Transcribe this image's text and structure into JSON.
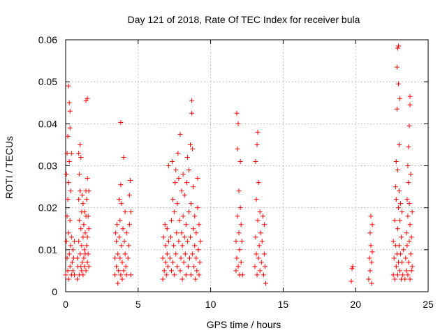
{
  "chart_data": {
    "type": "scatter",
    "title": "Day 121 of 2018, Rate Of TEC Index for receiver bula",
    "xlabel": "GPS time / hours",
    "ylabel": "ROTI / TECUs",
    "xlim": [
      0,
      25
    ],
    "ylim": [
      0,
      0.06
    ],
    "x_ticks": [
      0,
      5,
      10,
      15,
      20,
      25
    ],
    "y_ticks": [
      0,
      0.01,
      0.02,
      0.03,
      0.04,
      0.05,
      0.06
    ],
    "x_tick_labels": [
      "0",
      "5",
      "10",
      "15",
      "20",
      "25"
    ],
    "y_tick_labels": [
      "0",
      "0.01",
      "0.02",
      "0.03",
      "0.04",
      "0.05",
      "0.06"
    ],
    "grid": true,
    "marker": "+",
    "color": "#ff0000",
    "series": [
      {
        "points": [
          [
            0.0,
            0.004
          ],
          [
            0.05,
            0.012
          ],
          [
            0.05,
            0.028
          ],
          [
            0.1,
            0.008
          ],
          [
            0.1,
            0.018
          ],
          [
            0.1,
            0.033
          ],
          [
            0.15,
            0.005
          ],
          [
            0.15,
            0.022
          ],
          [
            0.15,
            0.037
          ],
          [
            0.2,
            0.003
          ],
          [
            0.2,
            0.014
          ],
          [
            0.2,
            0.026
          ],
          [
            0.2,
            0.049
          ],
          [
            0.25,
            0.009
          ],
          [
            0.25,
            0.031
          ],
          [
            0.25,
            0.045
          ],
          [
            0.3,
            0.006
          ],
          [
            0.3,
            0.017
          ],
          [
            0.3,
            0.039
          ],
          [
            0.3,
            0.043
          ],
          [
            0.35,
            0.011
          ],
          [
            0.35,
            0.024
          ],
          [
            0.4,
            0.004
          ],
          [
            0.4,
            0.013
          ],
          [
            0.4,
            0.033
          ],
          [
            0.45,
            0.007
          ],
          [
            0.5,
            0.005
          ],
          [
            0.5,
            0.01
          ],
          [
            0.55,
            0.008
          ],
          [
            0.6,
            0.004
          ],
          [
            0.6,
            0.012
          ],
          [
            0.8,
            0.003
          ],
          [
            0.8,
            0.008
          ],
          [
            0.85,
            0.006
          ],
          [
            0.9,
            0.012
          ],
          [
            0.9,
            0.022
          ],
          [
            0.9,
            0.033
          ],
          [
            0.95,
            0.004
          ],
          [
            0.95,
            0.017
          ],
          [
            0.95,
            0.028
          ],
          [
            1.0,
            0.009
          ],
          [
            1.0,
            0.024
          ],
          [
            1.0,
            0.035
          ],
          [
            1.05,
            0.006
          ],
          [
            1.05,
            0.015
          ],
          [
            1.05,
            0.032
          ],
          [
            1.1,
            0.005
          ],
          [
            1.1,
            0.011
          ],
          [
            1.1,
            0.019
          ],
          [
            1.15,
            0.007
          ],
          [
            1.15,
            0.023
          ],
          [
            1.2,
            0.004
          ],
          [
            1.2,
            0.013
          ],
          [
            1.2,
            0.021
          ],
          [
            1.25,
            0.008
          ],
          [
            1.25,
            0.016
          ],
          [
            1.3,
            0.006
          ],
          [
            1.3,
            0.01
          ],
          [
            1.3,
            0.019
          ],
          [
            1.35,
            0.009
          ],
          [
            1.35,
            0.014
          ],
          [
            1.4,
            0.005
          ],
          [
            1.4,
            0.018
          ],
          [
            1.4,
            0.024
          ],
          [
            1.4,
            0.0455
          ],
          [
            1.45,
            0.011
          ],
          [
            1.45,
            0.022
          ],
          [
            1.5,
            0.007
          ],
          [
            1.5,
            0.013
          ],
          [
            1.5,
            0.027
          ],
          [
            1.5,
            0.046
          ],
          [
            1.55,
            0.009
          ],
          [
            1.55,
            0.018
          ],
          [
            1.6,
            0.006
          ],
          [
            1.6,
            0.015
          ],
          [
            1.6,
            0.024
          ],
          [
            3.4,
            0.004
          ],
          [
            3.4,
            0.008
          ],
          [
            3.45,
            0.014
          ],
          [
            3.5,
            0.006
          ],
          [
            3.5,
            0.012
          ],
          [
            3.55,
            0.016
          ],
          [
            3.6,
            0.002
          ],
          [
            3.6,
            0.009
          ],
          [
            3.65,
            0.005
          ],
          [
            3.7,
            0.013
          ],
          [
            3.7,
            0.022
          ],
          [
            3.75,
            0.008
          ],
          [
            3.75,
            0.017
          ],
          [
            3.8,
            0.004
          ],
          [
            3.8,
            0.0255
          ],
          [
            3.8,
            0.0403
          ],
          [
            3.85,
            0.011
          ],
          [
            3.85,
            0.021
          ],
          [
            3.9,
            0.003
          ],
          [
            3.9,
            0.007
          ],
          [
            3.95,
            0.015
          ],
          [
            4.0,
            0.005
          ],
          [
            4.0,
            0.032
          ],
          [
            4.05,
            0.012
          ],
          [
            4.1,
            0.009
          ],
          [
            4.1,
            0.019
          ],
          [
            4.15,
            0.006
          ],
          [
            4.2,
            0.004
          ],
          [
            4.2,
            0.014
          ],
          [
            4.3,
            0.008
          ],
          [
            4.35,
            0.011
          ],
          [
            4.4,
            0.016
          ],
          [
            4.4,
            0.023
          ],
          [
            4.45,
            0.0265
          ],
          [
            4.5,
            0.004
          ],
          [
            4.5,
            0.019
          ],
          [
            6.7,
            0.003
          ],
          [
            6.7,
            0.008
          ],
          [
            6.75,
            0.013
          ],
          [
            6.8,
            0.005
          ],
          [
            6.85,
            0.016
          ],
          [
            6.9,
            0.007
          ],
          [
            6.9,
            0.011
          ],
          [
            6.95,
            0.004
          ],
          [
            7.0,
            0.009
          ],
          [
            7.0,
            0.015
          ],
          [
            7.05,
            0.006
          ],
          [
            7.1,
            0.012
          ],
          [
            7.1,
            0.03
          ],
          [
            7.2,
            0.008
          ],
          [
            7.25,
            0.013
          ],
          [
            7.3,
            0.005
          ],
          [
            7.3,
            0.017
          ],
          [
            7.35,
            0.031
          ],
          [
            7.4,
            0.007
          ],
          [
            7.4,
            0.022
          ],
          [
            7.45,
            0.011
          ],
          [
            7.5,
            0.004
          ],
          [
            7.5,
            0.019
          ],
          [
            7.55,
            0.026
          ],
          [
            7.6,
            0.009
          ],
          [
            7.6,
            0.029
          ],
          [
            7.65,
            0.014
          ],
          [
            7.7,
            0.006
          ],
          [
            7.7,
            0.021
          ],
          [
            7.75,
            0.033
          ],
          [
            7.8,
            0.012
          ],
          [
            7.8,
            0.027
          ],
          [
            7.85,
            0.017
          ],
          [
            7.9,
            0.005
          ],
          [
            7.9,
            0.0375
          ],
          [
            7.95,
            0.008
          ],
          [
            8.0,
            0.014
          ],
          [
            8.0,
            0.024
          ],
          [
            8.05,
            0.003
          ],
          [
            8.05,
            0.011
          ],
          [
            8.1,
            0.018
          ],
          [
            8.1,
            0.028
          ],
          [
            8.15,
            0.007
          ],
          [
            8.2,
            0.013
          ],
          [
            8.2,
            0.023
          ],
          [
            8.25,
            0.009
          ],
          [
            8.3,
            0.004
          ],
          [
            8.3,
            0.016
          ],
          [
            8.35,
            0.026
          ],
          [
            8.4,
            0.012
          ],
          [
            8.4,
            0.032
          ],
          [
            8.45,
            0.006
          ],
          [
            8.5,
            0.019
          ],
          [
            8.5,
            0.029
          ],
          [
            8.55,
            0.008
          ],
          [
            8.6,
            0.013
          ],
          [
            8.6,
            0.035
          ],
          [
            8.65,
            0.004
          ],
          [
            8.65,
            0.021
          ],
          [
            8.7,
            0.0425
          ],
          [
            8.7,
            0.0455
          ],
          [
            8.75,
            0.009
          ],
          [
            8.75,
            0.034
          ],
          [
            8.8,
            0.015
          ],
          [
            8.8,
            0.025
          ],
          [
            8.85,
            0.006
          ],
          [
            8.9,
            0.011
          ],
          [
            8.9,
            0.018
          ],
          [
            8.95,
            0.003
          ],
          [
            9.0,
            0.008
          ],
          [
            9.0,
            0.014
          ],
          [
            9.05,
            0.005
          ],
          [
            9.1,
            0.02
          ],
          [
            9.1,
            0.027
          ],
          [
            9.15,
            0.01
          ],
          [
            9.2,
            0.004
          ],
          [
            9.2,
            0.016
          ],
          [
            9.25,
            0.007
          ],
          [
            9.3,
            0.012
          ],
          [
            11.75,
            0.005
          ],
          [
            11.75,
            0.012
          ],
          [
            11.8,
            0.008
          ],
          [
            11.8,
            0.0425
          ],
          [
            11.85,
            0.018
          ],
          [
            11.85,
            0.034
          ],
          [
            11.9,
            0.006
          ],
          [
            11.9,
            0.04
          ],
          [
            11.95,
            0.014
          ],
          [
            11.95,
            0.024
          ],
          [
            12.0,
            0.004
          ],
          [
            12.0,
            0.01
          ],
          [
            12.05,
            0.02
          ],
          [
            12.05,
            0.031
          ],
          [
            12.1,
            0.007
          ],
          [
            12.1,
            0.016
          ],
          [
            12.15,
            0.012
          ],
          [
            12.2,
            0.004
          ],
          [
            13.05,
            0.006
          ],
          [
            13.1,
            0.013
          ],
          [
            13.1,
            0.031
          ],
          [
            13.15,
            0.009
          ],
          [
            13.15,
            0.022
          ],
          [
            13.2,
            0.004
          ],
          [
            13.2,
            0.035
          ],
          [
            13.25,
            0.017
          ],
          [
            13.25,
            0.038
          ],
          [
            13.3,
            0.008
          ],
          [
            13.3,
            0.026
          ],
          [
            13.35,
            0.011
          ],
          [
            13.4,
            0.005
          ],
          [
            13.4,
            0.019
          ],
          [
            13.45,
            0.014
          ],
          [
            13.5,
            0.007
          ],
          [
            13.55,
            0.012
          ],
          [
            13.6,
            0.018
          ],
          [
            13.65,
            0.004
          ],
          [
            13.7,
            0.009
          ],
          [
            13.7,
            0.016
          ],
          [
            13.75,
            0.006
          ],
          [
            13.8,
            0.002
          ],
          [
            19.7,
            0.0025
          ],
          [
            19.75,
            0.0055
          ],
          [
            19.8,
            0.006
          ],
          [
            20.9,
            0.003
          ],
          [
            20.95,
            0.008
          ],
          [
            21.0,
            0.005
          ],
          [
            21.0,
            0.014
          ],
          [
            21.05,
            0.011
          ],
          [
            21.05,
            0.018
          ],
          [
            21.1,
            0.002
          ],
          [
            21.1,
            0.007
          ],
          [
            21.15,
            0.016
          ],
          [
            21.15,
            0.0095
          ],
          [
            22.6,
            0.004
          ],
          [
            22.6,
            0.012
          ],
          [
            22.65,
            0.008
          ],
          [
            22.7,
            0.003
          ],
          [
            22.7,
            0.017
          ],
          [
            22.75,
            0.011
          ],
          [
            22.75,
            0.025
          ],
          [
            22.8,
            0.006
          ],
          [
            22.8,
            0.022
          ],
          [
            22.8,
            0.031
          ],
          [
            22.85,
            0.009
          ],
          [
            22.85,
            0.0435
          ],
          [
            22.85,
            0.0535
          ],
          [
            22.9,
            0.004
          ],
          [
            22.9,
            0.015
          ],
          [
            22.9,
            0.029
          ],
          [
            22.9,
            0.058
          ],
          [
            22.95,
            0.007
          ],
          [
            22.95,
            0.02
          ],
          [
            22.95,
            0.0495
          ],
          [
            22.95,
            0.0585
          ],
          [
            23.0,
            0.011
          ],
          [
            23.0,
            0.024
          ],
          [
            23.0,
            0.035
          ],
          [
            23.05,
            0.005
          ],
          [
            23.05,
            0.017
          ],
          [
            23.05,
            0.046
          ],
          [
            23.1,
            0.009
          ],
          [
            23.1,
            0.021
          ],
          [
            23.15,
            0.003
          ],
          [
            23.15,
            0.013
          ],
          [
            23.2,
            0.007
          ],
          [
            23.2,
            0.019
          ],
          [
            23.25,
            0.004
          ],
          [
            23.3,
            0.01
          ],
          [
            23.4,
            0.003
          ],
          [
            23.45,
            0.008
          ],
          [
            23.5,
            0.005
          ],
          [
            23.5,
            0.014
          ],
          [
            23.55,
            0.011
          ],
          [
            23.55,
            0.022
          ],
          [
            23.6,
            0.004
          ],
          [
            23.6,
            0.018
          ],
          [
            23.6,
            0.03
          ],
          [
            23.65,
            0.007
          ],
          [
            23.65,
            0.026
          ],
          [
            23.65,
            0.0345
          ],
          [
            23.7,
            0.012
          ],
          [
            23.7,
            0.021
          ],
          [
            23.7,
            0.0395
          ],
          [
            23.75,
            0.003
          ],
          [
            23.75,
            0.016
          ],
          [
            23.75,
            0.0445
          ],
          [
            23.75,
            0.0465
          ],
          [
            23.8,
            0.009
          ],
          [
            23.8,
            0.028
          ],
          [
            23.85,
            0.005
          ],
          [
            23.85,
            0.013
          ],
          [
            23.9,
            0.006
          ],
          [
            23.9,
            0.019
          ]
        ]
      }
    ]
  }
}
